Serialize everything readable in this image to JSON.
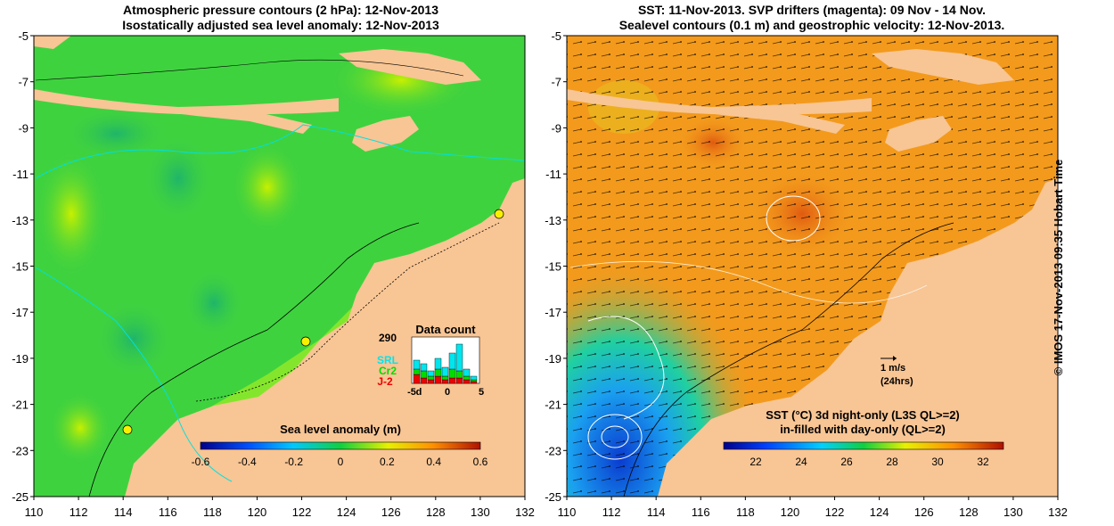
{
  "left_map": {
    "title_line1": "Atmospheric pressure contours (2 hPa): 12-Nov-2013",
    "title_line2": "Isostatically adjusted sea level anomaly: 12-Nov-2013",
    "x_ticks": [
      "110",
      "112",
      "114",
      "116",
      "118",
      "120",
      "122",
      "124",
      "126",
      "128",
      "130",
      "132"
    ],
    "y_ticks": [
      "-5",
      "-7",
      "-9",
      "-11",
      "-13",
      "-15",
      "-17",
      "-19",
      "-21",
      "-23",
      "-25"
    ],
    "colorbar": {
      "label": "Sea level anomaly (m)",
      "ticks": [
        "-0.6",
        "-0.4",
        "-0.2",
        "0",
        "0.2",
        "0.4",
        "0.6"
      ]
    },
    "data_count": {
      "title": "Data count",
      "max_label": "290",
      "series": [
        {
          "name": "SRL",
          "color": "#00e5ee"
        },
        {
          "name": "Cr2",
          "color": "#00dd00"
        },
        {
          "name": "J-2",
          "color": "#ee0000"
        }
      ],
      "x_ticks": [
        "-5",
        "0",
        "5"
      ],
      "x_minor_label": "d"
    }
  },
  "right_map": {
    "title_line1": "SST: 11-Nov-2013. SVP drifters (magenta): 09 Nov - 14 Nov.",
    "title_line2": "Sealevel contours (0.1 m) and geostrophic velocity: 12-Nov-2013.",
    "x_ticks": [
      "110",
      "112",
      "114",
      "116",
      "118",
      "120",
      "122",
      "124",
      "126",
      "128",
      "130",
      "132"
    ],
    "y_ticks": [
      "-5",
      "-7",
      "-9",
      "-11",
      "-13",
      "-15",
      "-17",
      "-19",
      "-21",
      "-23",
      "-25"
    ],
    "velocity_scale": {
      "label": "1 m/s",
      "sub": "(24hrs)"
    },
    "colorbar": {
      "label_line1": "SST (°C)  3d night-only (L3S QL>=2)",
      "label_line2": "in-filled with day-only (QL>=2)",
      "ticks": [
        "22",
        "24",
        "26",
        "28",
        "30",
        "32"
      ]
    }
  },
  "side_credit": "© IMOS 17-Nov-2013 09:35 Hobart Time",
  "colors": {
    "land": "#f8c594",
    "sea_green": "#3fd23f",
    "sst_orange": "#f39a1c",
    "sst_blue": "#1aa0f0"
  }
}
